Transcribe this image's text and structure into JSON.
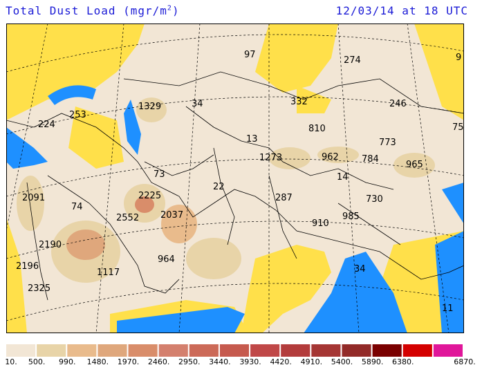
{
  "title": {
    "label": "Total Dust Load (mgr/m",
    "superscript": "2",
    "close": ")"
  },
  "datetime": "12/03/14 at 18 UTC",
  "colors": {
    "ocean": "#1e90ff",
    "land_low": "#f2e6d5",
    "low_dust_yellow": "#ffe04a",
    "border": "#000000",
    "grid": "#000000"
  },
  "values": [
    {
      "id": "v97",
      "text": "97"
    },
    {
      "id": "v274",
      "text": "274"
    },
    {
      "id": "v9",
      "text": "9"
    },
    {
      "id": "v1329",
      "text": "1329"
    },
    {
      "id": "v34a",
      "text": "34"
    },
    {
      "id": "v332",
      "text": "332"
    },
    {
      "id": "v246",
      "text": "246"
    },
    {
      "id": "v253",
      "text": "253"
    },
    {
      "id": "v224",
      "text": "224"
    },
    {
      "id": "v810",
      "text": "810"
    },
    {
      "id": "v75",
      "text": "75"
    },
    {
      "id": "v13",
      "text": "13"
    },
    {
      "id": "v773",
      "text": "773"
    },
    {
      "id": "v1273",
      "text": "1273"
    },
    {
      "id": "v962",
      "text": "962"
    },
    {
      "id": "v784",
      "text": "784"
    },
    {
      "id": "v965",
      "text": "965"
    },
    {
      "id": "v73",
      "text": "73"
    },
    {
      "id": "v14",
      "text": "14"
    },
    {
      "id": "v22",
      "text": "22"
    },
    {
      "id": "v2091",
      "text": "2091"
    },
    {
      "id": "v2225",
      "text": "2225"
    },
    {
      "id": "v287",
      "text": "287"
    },
    {
      "id": "v730",
      "text": "730"
    },
    {
      "id": "v74",
      "text": "74"
    },
    {
      "id": "v2552",
      "text": "2552"
    },
    {
      "id": "v2037",
      "text": "2037"
    },
    {
      "id": "v910",
      "text": "910"
    },
    {
      "id": "v985",
      "text": "985"
    },
    {
      "id": "v2190",
      "text": "2190"
    },
    {
      "id": "v964",
      "text": "964"
    },
    {
      "id": "v2196",
      "text": "2196"
    },
    {
      "id": "v1117",
      "text": "1117"
    },
    {
      "id": "v34b",
      "text": "34"
    },
    {
      "id": "v2325",
      "text": "2325"
    },
    {
      "id": "v11",
      "text": "11"
    }
  ],
  "legend": {
    "colors": [
      "#f2e6d5",
      "#e8d4a8",
      "#e9bb8c",
      "#dfa77c",
      "#d98d6a",
      "#d4806e",
      "#cc6a58",
      "#c65a4e",
      "#c04848",
      "#b33c3c",
      "#a53634",
      "#922a28",
      "#7a0000",
      "#d40000",
      "#e0169a"
    ],
    "labels": [
      "10.",
      "500.",
      "990.",
      "1480.",
      "1970.",
      "2460.",
      "2950.",
      "3440.",
      "3930.",
      "4420.",
      "4910.",
      "5400.",
      "5890.",
      "6380.",
      "6870."
    ]
  }
}
